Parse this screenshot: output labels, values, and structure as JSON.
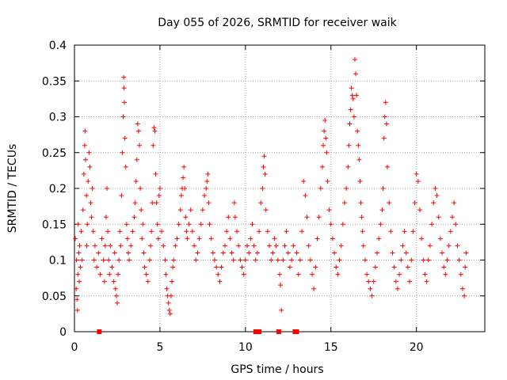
{
  "chart_data": {
    "type": "scatter",
    "title": "Day 055 of 2026, SRMTID for receiver waik",
    "xlabel": "GPS time / hours",
    "ylabel": "SRMTID / TECUs",
    "xlim": [
      0,
      24
    ],
    "ylim": [
      0,
      0.4
    ],
    "grid": true,
    "marker": "plus",
    "marker_color": "#ff0000",
    "x_ticks": [
      {
        "value": 0,
        "label": "0"
      },
      {
        "value": 5,
        "label": "5"
      },
      {
        "value": 10,
        "label": "10"
      },
      {
        "value": 15,
        "label": "15"
      },
      {
        "value": 20,
        "label": "20"
      }
    ],
    "y_ticks": [
      {
        "value": 0,
        "label": "0"
      },
      {
        "value": 0.05,
        "label": "0.05"
      },
      {
        "value": 0.1,
        "label": "0.1"
      },
      {
        "value": 0.15,
        "label": "0.15"
      },
      {
        "value": 0.2,
        "label": "0.2"
      },
      {
        "value": 0.25,
        "label": "0.25"
      },
      {
        "value": 0.3,
        "label": "0.3"
      },
      {
        "value": 0.35,
        "label": "0.35"
      },
      {
        "value": 0.4,
        "label": "0.4"
      }
    ],
    "series": [
      {
        "name": "SRMTID",
        "points": [
          [
            0.05,
            0.13
          ],
          [
            0.1,
            0.06
          ],
          [
            0.12,
            0.1
          ],
          [
            0.15,
            0.045
          ],
          [
            0.18,
            0.03
          ],
          [
            0.2,
            0.08
          ],
          [
            0.22,
            0.15
          ],
          [
            0.25,
            0.11
          ],
          [
            0.28,
            0.07
          ],
          [
            0.3,
            0.12
          ],
          [
            0.35,
            0.09
          ],
          [
            0.4,
            0.14
          ],
          [
            0.45,
            0.1
          ],
          [
            0.5,
            0.17
          ],
          [
            0.55,
            0.22
          ],
          [
            0.6,
            0.26
          ],
          [
            0.62,
            0.28
          ],
          [
            0.65,
            0.24
          ],
          [
            0.7,
            0.19
          ],
          [
            0.72,
            0.12
          ],
          [
            0.75,
            0.15
          ],
          [
            0.8,
            0.21
          ],
          [
            0.85,
            0.25
          ],
          [
            0.9,
            0.23
          ],
          [
            0.95,
            0.18
          ],
          [
            1.0,
            0.16
          ],
          [
            1.05,
            0.2
          ],
          [
            1.1,
            0.14
          ],
          [
            1.15,
            0.1
          ],
          [
            1.2,
            0.12
          ],
          [
            1.3,
            0.09
          ],
          [
            1.4,
            0.11
          ],
          [
            1.5,
            0.08
          ],
          [
            1.6,
            0.13
          ],
          [
            1.7,
            0.1
          ],
          [
            1.75,
            0.07
          ],
          [
            1.8,
            0.12
          ],
          [
            1.85,
            0.16
          ],
          [
            1.9,
            0.2
          ],
          [
            1.95,
            0.14
          ],
          [
            2.0,
            0.1
          ],
          [
            2.05,
            0.08
          ],
          [
            2.1,
            0.12
          ],
          [
            2.2,
            0.09
          ],
          [
            2.3,
            0.07
          ],
          [
            2.35,
            0.11
          ],
          [
            2.4,
            0.06
          ],
          [
            2.45,
            0.05
          ],
          [
            2.5,
            0.04
          ],
          [
            2.55,
            0.08
          ],
          [
            2.6,
            0.1
          ],
          [
            2.65,
            0.14
          ],
          [
            2.7,
            0.12
          ],
          [
            2.75,
            0.19
          ],
          [
            2.8,
            0.25
          ],
          [
            2.85,
            0.3
          ],
          [
            2.88,
            0.355
          ],
          [
            2.9,
            0.34
          ],
          [
            2.92,
            0.32
          ],
          [
            2.95,
            0.27
          ],
          [
            3.0,
            0.23
          ],
          [
            3.05,
            0.15
          ],
          [
            3.1,
            0.13
          ],
          [
            3.15,
            0.11
          ],
          [
            3.2,
            0.1
          ],
          [
            3.3,
            0.12
          ],
          [
            3.4,
            0.14
          ],
          [
            3.5,
            0.16
          ],
          [
            3.55,
            0.18
          ],
          [
            3.6,
            0.21
          ],
          [
            3.65,
            0.24
          ],
          [
            3.7,
            0.29
          ],
          [
            3.75,
            0.28
          ],
          [
            3.8,
            0.26
          ],
          [
            3.85,
            0.2
          ],
          [
            3.9,
            0.17
          ],
          [
            3.95,
            0.13
          ],
          [
            4.0,
            0.15
          ],
          [
            4.05,
            0.11
          ],
          [
            4.1,
            0.09
          ],
          [
            4.2,
            0.08
          ],
          [
            4.3,
            0.07
          ],
          [
            4.4,
            0.1
          ],
          [
            4.45,
            0.12
          ],
          [
            4.5,
            0.14
          ],
          [
            4.55,
            0.18
          ],
          [
            4.6,
            0.26
          ],
          [
            4.65,
            0.285
          ],
          [
            4.7,
            0.28
          ],
          [
            4.75,
            0.22
          ],
          [
            4.8,
            0.18
          ],
          [
            4.85,
            0.15
          ],
          [
            4.9,
            0.13
          ],
          [
            4.95,
            0.19
          ],
          [
            5.0,
            0.2
          ],
          [
            5.1,
            0.14
          ],
          [
            5.2,
            0.12
          ],
          [
            5.3,
            0.1
          ],
          [
            5.35,
            0.08
          ],
          [
            5.4,
            0.06
          ],
          [
            5.45,
            0.05
          ],
          [
            5.5,
            0.04
          ],
          [
            5.55,
            0.03
          ],
          [
            5.6,
            0.025
          ],
          [
            5.65,
            0.05
          ],
          [
            5.7,
            0.07
          ],
          [
            5.75,
            0.09
          ],
          [
            5.8,
            0.1
          ],
          [
            5.9,
            0.12
          ],
          [
            6.0,
            0.13
          ],
          [
            6.1,
            0.15
          ],
          [
            6.2,
            0.17
          ],
          [
            6.25,
            0.19
          ],
          [
            6.3,
            0.2
          ],
          [
            6.35,
            0.215
          ],
          [
            6.4,
            0.23
          ],
          [
            6.45,
            0.2
          ],
          [
            6.5,
            0.16
          ],
          [
            6.55,
            0.14
          ],
          [
            6.6,
            0.13
          ],
          [
            6.7,
            0.15
          ],
          [
            6.8,
            0.17
          ],
          [
            6.9,
            0.14
          ],
          [
            7.0,
            0.12
          ],
          [
            7.1,
            0.1
          ],
          [
            7.2,
            0.11
          ],
          [
            7.3,
            0.13
          ],
          [
            7.4,
            0.15
          ],
          [
            7.5,
            0.17
          ],
          [
            7.6,
            0.19
          ],
          [
            7.7,
            0.2
          ],
          [
            7.75,
            0.21
          ],
          [
            7.8,
            0.22
          ],
          [
            7.85,
            0.18
          ],
          [
            7.9,
            0.15
          ],
          [
            8.0,
            0.13
          ],
          [
            8.1,
            0.11
          ],
          [
            8.2,
            0.1
          ],
          [
            8.3,
            0.09
          ],
          [
            8.4,
            0.08
          ],
          [
            8.5,
            0.07
          ],
          [
            8.6,
            0.09
          ],
          [
            8.7,
            0.11
          ],
          [
            8.8,
            0.12
          ],
          [
            8.9,
            0.14
          ],
          [
            9.0,
            0.16
          ],
          [
            9.1,
            0.13
          ],
          [
            9.2,
            0.11
          ],
          [
            9.3,
            0.1
          ],
          [
            9.35,
            0.18
          ],
          [
            9.4,
            0.16
          ],
          [
            9.5,
            0.14
          ],
          [
            9.6,
            0.12
          ],
          [
            9.7,
            0.1
          ],
          [
            9.8,
            0.09
          ],
          [
            9.9,
            0.08
          ],
          [
            10.0,
            0.1
          ],
          [
            10.1,
            0.12
          ],
          [
            10.2,
            0.11
          ],
          [
            10.3,
            0.13
          ],
          [
            10.4,
            0.15
          ],
          [
            10.5,
            0.12
          ],
          [
            10.6,
            0.1
          ],
          [
            10.7,
            0.11
          ],
          [
            10.8,
            0.14
          ],
          [
            10.9,
            0.18
          ],
          [
            11.0,
            0.2
          ],
          [
            11.05,
            0.23
          ],
          [
            11.1,
            0.245
          ],
          [
            11.15,
            0.22
          ],
          [
            11.2,
            0.17
          ],
          [
            11.3,
            0.14
          ],
          [
            11.4,
            0.12
          ],
          [
            11.5,
            0.1
          ],
          [
            11.6,
            0.11
          ],
          [
            11.7,
            0.13
          ],
          [
            11.8,
            0.12
          ],
          [
            11.9,
            0.1
          ],
          [
            12.0,
            0.08
          ],
          [
            12.05,
            0.065
          ],
          [
            12.1,
            0.03
          ],
          [
            12.2,
            0.1
          ],
          [
            12.3,
            0.12
          ],
          [
            12.4,
            0.14
          ],
          [
            12.5,
            0.11
          ],
          [
            12.6,
            0.09
          ],
          [
            12.7,
            0.1
          ],
          [
            12.8,
            0.12
          ],
          [
            13.0,
            0.11
          ],
          [
            13.1,
            0.08
          ],
          [
            13.2,
            0.1
          ],
          [
            13.3,
            0.14
          ],
          [
            13.4,
            0.21
          ],
          [
            13.5,
            0.19
          ],
          [
            13.6,
            0.16
          ],
          [
            13.7,
            0.12
          ],
          [
            13.8,
            0.1
          ],
          [
            13.9,
            0.08
          ],
          [
            14.0,
            0.06
          ],
          [
            14.1,
            0.09
          ],
          [
            14.2,
            0.13
          ],
          [
            14.3,
            0.16
          ],
          [
            14.4,
            0.2
          ],
          [
            14.5,
            0.23
          ],
          [
            14.55,
            0.26
          ],
          [
            14.6,
            0.28
          ],
          [
            14.65,
            0.295
          ],
          [
            14.7,
            0.27
          ],
          [
            14.75,
            0.25
          ],
          [
            14.8,
            0.21
          ],
          [
            14.9,
            0.17
          ],
          [
            15.0,
            0.15
          ],
          [
            15.1,
            0.13
          ],
          [
            15.2,
            0.11
          ],
          [
            15.3,
            0.09
          ],
          [
            15.4,
            0.08
          ],
          [
            15.5,
            0.1
          ],
          [
            15.6,
            0.12
          ],
          [
            15.7,
            0.15
          ],
          [
            15.8,
            0.18
          ],
          [
            15.9,
            0.2
          ],
          [
            16.0,
            0.23
          ],
          [
            16.05,
            0.26
          ],
          [
            16.1,
            0.29
          ],
          [
            16.15,
            0.31
          ],
          [
            16.2,
            0.34
          ],
          [
            16.25,
            0.33
          ],
          [
            16.3,
            0.325
          ],
          [
            16.35,
            0.3
          ],
          [
            16.4,
            0.38
          ],
          [
            16.45,
            0.36
          ],
          [
            16.5,
            0.33
          ],
          [
            16.55,
            0.28
          ],
          [
            16.6,
            0.26
          ],
          [
            16.65,
            0.24
          ],
          [
            16.7,
            0.21
          ],
          [
            16.75,
            0.18
          ],
          [
            16.8,
            0.16
          ],
          [
            16.85,
            0.14
          ],
          [
            16.9,
            0.12
          ],
          [
            17.0,
            0.1
          ],
          [
            17.1,
            0.08
          ],
          [
            17.2,
            0.07
          ],
          [
            17.3,
            0.06
          ],
          [
            17.4,
            0.05
          ],
          [
            17.5,
            0.07
          ],
          [
            17.6,
            0.09
          ],
          [
            17.7,
            0.11
          ],
          [
            17.8,
            0.13
          ],
          [
            17.9,
            0.15
          ],
          [
            18.0,
            0.17
          ],
          [
            18.05,
            0.2
          ],
          [
            18.1,
            0.27
          ],
          [
            18.15,
            0.3
          ],
          [
            18.2,
            0.32
          ],
          [
            18.25,
            0.29
          ],
          [
            18.3,
            0.23
          ],
          [
            18.4,
            0.18
          ],
          [
            18.5,
            0.14
          ],
          [
            18.6,
            0.11
          ],
          [
            18.7,
            0.09
          ],
          [
            18.8,
            0.07
          ],
          [
            18.9,
            0.06
          ],
          [
            19.0,
            0.08
          ],
          [
            19.1,
            0.1
          ],
          [
            19.2,
            0.12
          ],
          [
            19.3,
            0.14
          ],
          [
            19.4,
            0.11
          ],
          [
            19.5,
            0.09
          ],
          [
            19.6,
            0.07
          ],
          [
            19.7,
            0.1
          ],
          [
            19.8,
            0.14
          ],
          [
            19.9,
            0.18
          ],
          [
            20.0,
            0.22
          ],
          [
            20.1,
            0.21
          ],
          [
            20.2,
            0.17
          ],
          [
            20.3,
            0.13
          ],
          [
            20.4,
            0.1
          ],
          [
            20.5,
            0.08
          ],
          [
            20.6,
            0.07
          ],
          [
            20.7,
            0.1
          ],
          [
            20.8,
            0.12
          ],
          [
            20.9,
            0.15
          ],
          [
            21.0,
            0.18
          ],
          [
            21.1,
            0.2
          ],
          [
            21.2,
            0.19
          ],
          [
            21.3,
            0.16
          ],
          [
            21.4,
            0.13
          ],
          [
            21.5,
            0.11
          ],
          [
            21.6,
            0.09
          ],
          [
            21.7,
            0.08
          ],
          [
            21.8,
            0.1
          ],
          [
            21.9,
            0.12
          ],
          [
            22.0,
            0.14
          ],
          [
            22.1,
            0.16
          ],
          [
            22.2,
            0.18
          ],
          [
            22.3,
            0.15
          ],
          [
            22.4,
            0.12
          ],
          [
            22.5,
            0.1
          ],
          [
            22.6,
            0.08
          ],
          [
            22.7,
            0.06
          ],
          [
            22.8,
            0.05
          ],
          [
            22.85,
            0.09
          ],
          [
            22.9,
            0.11
          ]
        ]
      }
    ],
    "zero_markers": [
      1.45,
      10.6,
      10.65,
      10.7,
      10.75,
      10.8,
      11.95,
      12.9,
      13.0
    ]
  }
}
